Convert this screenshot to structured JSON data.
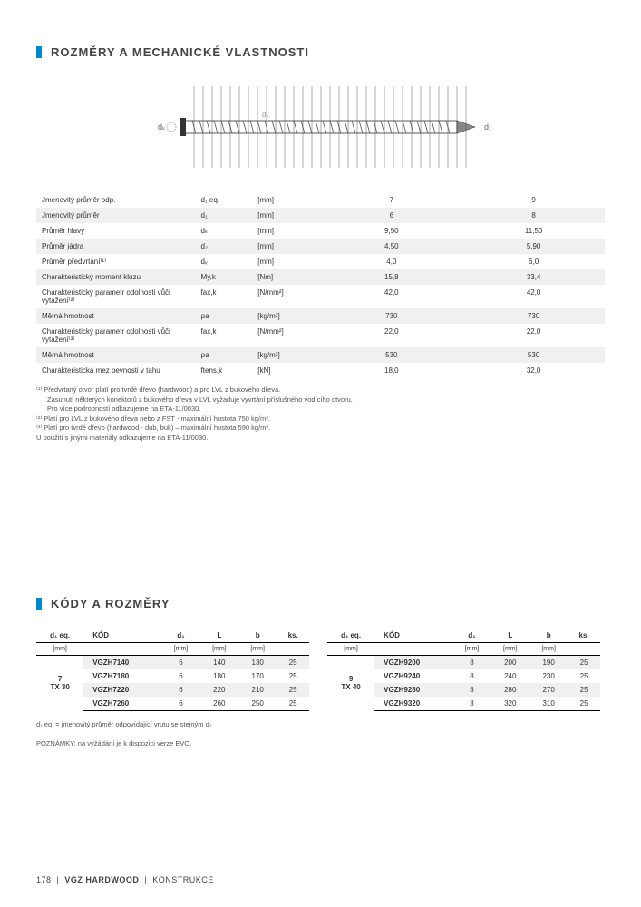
{
  "section1": {
    "title": "ROZMĚRY A MECHANICKÉ VLASTNOSTI"
  },
  "diagram": {
    "d1": "d₁",
    "d2": "d₂",
    "dk": "dₖ"
  },
  "props": {
    "rows": [
      {
        "label": "Jmenovitý průměr odp.",
        "sym": "d₁ eq.",
        "unit": "[mm]",
        "v1": "7",
        "v2": "9"
      },
      {
        "label": "Jmenovitý průměr",
        "sym": "d₁",
        "unit": "[mm]",
        "v1": "6",
        "v2": "8"
      },
      {
        "label": "Průměr hlavy",
        "sym": "dₖ",
        "unit": "[mm]",
        "v1": "9,50",
        "v2": "11,50"
      },
      {
        "label": "Průměr jádra",
        "sym": "d₂",
        "unit": "[mm]",
        "v1": "4,50",
        "v2": "5,90"
      },
      {
        "label": "Průměr předvrtání⁽¹⁾",
        "sym": "dᵥ",
        "unit": "[mm]",
        "v1": "4,0",
        "v2": "6,0"
      },
      {
        "label": "Charakteristický moment kluzu",
        "sym": "My,k",
        "unit": "[Nm]",
        "v1": "15,8",
        "v2": "33,4"
      },
      {
        "label": "Charakteristický parametr odolnosti vůči vytažení⁽²⁾",
        "sym": "fax,k",
        "unit": "[N/mm²]",
        "v1": "42,0",
        "v2": "42,0"
      },
      {
        "label": "Měrná hmotnost",
        "sym": "ρa",
        "unit": "[kg/m³]",
        "v1": "730",
        "v2": "730"
      },
      {
        "label": "Charakteristický parametr odolnosti vůči vytažení⁽³⁾",
        "sym": "fax,k",
        "unit": "[N/mm²]",
        "v1": "22,0",
        "v2": "22,0"
      },
      {
        "label": "Měrná hmotnost",
        "sym": "ρa",
        "unit": "[kg/m³]",
        "v1": "530",
        "v2": "530"
      },
      {
        "label": "Charakteristická mez pevnosti v tahu",
        "sym": "ftens,k",
        "unit": "[kN]",
        "v1": "18,0",
        "v2": "32,0"
      }
    ]
  },
  "notes": {
    "l1": "⁽¹⁾ Předvrtaný otvor platí pro tvrdé dřevo (hardwood) a pro LVL z bukového dřeva.",
    "l1b": "Zasunutí některých konektorů z bukového dřeva v LVL vyžaduje vyvrtání příslušného vodícího otvoru.",
    "l1c": "Pro více podrobností odkazujeme na ETA-11/0030.",
    "l2": "⁽²⁾ Platí pro LVL z bukového dřeva nebo z FST - maximální hustota 750 kg/m³.",
    "l3": "⁽³⁾ Platí pro tvrdé dřevo (hardwood - dub, buk) – maximální hustota 590 kg/m³.",
    "l4": "U použití s jinými materiály odkazujeme na ETA-11/0030."
  },
  "section2": {
    "title": "KÓDY A ROZMĚRY"
  },
  "codes": {
    "headers": {
      "d1eq": "d₁ eq.",
      "kod": "KÓD",
      "d1": "d₁",
      "L": "L",
      "b": "b",
      "ks": "ks."
    },
    "unit": "[mm]",
    "left": {
      "group": "7\nTX 30",
      "rows": [
        {
          "code": "VGZH7140",
          "d1": "6",
          "L": "140",
          "b": "130",
          "ks": "25"
        },
        {
          "code": "VGZH7180",
          "d1": "6",
          "L": "180",
          "b": "170",
          "ks": "25"
        },
        {
          "code": "VGZH7220",
          "d1": "6",
          "L": "220",
          "b": "210",
          "ks": "25"
        },
        {
          "code": "VGZH7260",
          "d1": "6",
          "L": "260",
          "b": "250",
          "ks": "25"
        }
      ]
    },
    "right": {
      "group": "9\nTX 40",
      "rows": [
        {
          "code": "VGZH9200",
          "d1": "8",
          "L": "200",
          "b": "190",
          "ks": "25"
        },
        {
          "code": "VGZH9240",
          "d1": "8",
          "L": "240",
          "b": "230",
          "ks": "25"
        },
        {
          "code": "VGZH9280",
          "d1": "8",
          "L": "280",
          "b": "270",
          "ks": "25"
        },
        {
          "code": "VGZH9320",
          "d1": "8",
          "L": "320",
          "b": "310",
          "ks": "25"
        }
      ]
    }
  },
  "defnote": "d₁ eq. =  jmenovitý průměr odpovídající vrutu se stejným d₂",
  "poznamky": "POZNÁMKY: na vyžádání je k dispozici verze EVO.",
  "footer": {
    "page": "178",
    "product": "VGZ HARDWOOD",
    "cat": "KONSTRUKCE"
  }
}
